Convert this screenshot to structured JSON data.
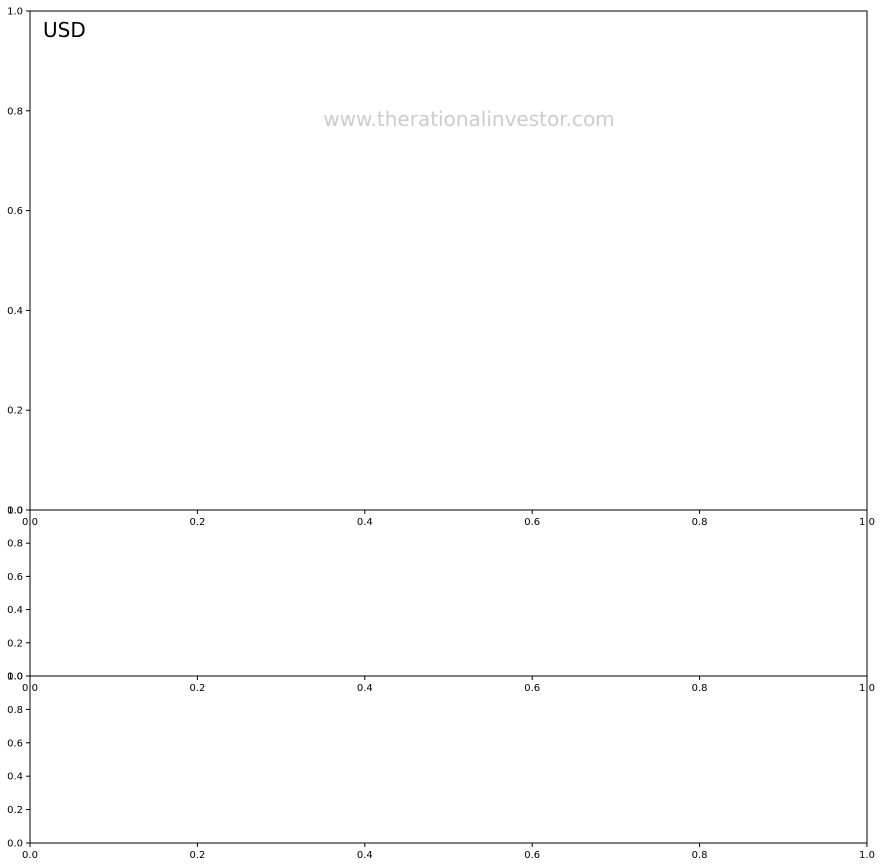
{
  "chart_data": [
    {
      "type": "line",
      "panel_title": "USD",
      "watermark": "www.therationalinvestor.com",
      "xlim": [
        0.0,
        1.0
      ],
      "ylim": [
        0.0,
        1.0
      ],
      "x_ticks": [
        "0.0",
        "0.2",
        "0.4",
        "0.6",
        "0.8",
        "1.0"
      ],
      "y_ticks": [
        "0.0",
        "0.2",
        "0.4",
        "0.6",
        "0.8",
        "1.0"
      ],
      "series": []
    },
    {
      "type": "line",
      "xlim": [
        0.0,
        1.0
      ],
      "ylim": [
        0.0,
        1.0
      ],
      "x_ticks": [
        "0.0",
        "0.2",
        "0.4",
        "0.6",
        "0.8",
        "1.0"
      ],
      "y_ticks": [
        "0.0",
        "0.2",
        "0.4",
        "0.6",
        "0.8",
        "1.0"
      ],
      "series": []
    },
    {
      "type": "line",
      "xlim": [
        0.0,
        1.0
      ],
      "ylim": [
        0.0,
        1.0
      ],
      "x_ticks": [
        "0.0",
        "0.2",
        "0.4",
        "0.6",
        "0.8",
        "1.0"
      ],
      "y_ticks": [
        "0.0",
        "0.2",
        "0.4",
        "0.6",
        "0.8",
        "1.0"
      ],
      "series": []
    }
  ],
  "colors": {
    "axis": "#000000",
    "watermark": "#cccccc",
    "background": "#ffffff"
  }
}
